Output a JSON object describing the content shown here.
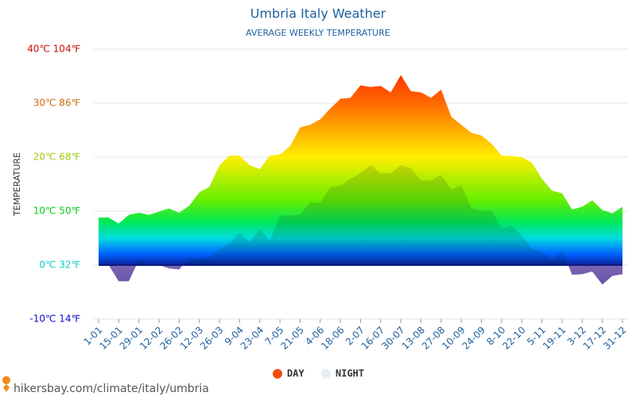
{
  "chart_data": {
    "type": "area",
    "title": "Umbria Italy Weather",
    "subtitle": "AVERAGE WEEKLY TEMPERATURE",
    "y_label": "TEMPERATURE",
    "source": "hikersbay.com/climate/italy/umbria",
    "categories": [
      "1-01",
      null,
      "15-01",
      null,
      "29-01",
      null,
      "12-02",
      null,
      "26-02",
      null,
      "12-03",
      null,
      "26-03",
      null,
      "9-04",
      null,
      "23-04",
      null,
      "7-05",
      null,
      "21-05",
      null,
      "4-06",
      null,
      "18-06",
      null,
      "2-07",
      null,
      "16-07",
      null,
      "30-07",
      null,
      "13-08",
      null,
      "27-08",
      null,
      "10-09",
      null,
      "24-09",
      null,
      "8-10",
      null,
      "22-10",
      null,
      "5-11",
      null,
      "19-11",
      null,
      "3-12",
      null,
      "17-12",
      null,
      "31-12"
    ],
    "series": [
      {
        "name": "DAY",
        "color": "#f04c0c",
        "values": [
          8.8,
          8.8,
          7.7,
          9.3,
          9.7,
          9.3,
          9.9,
          10.5,
          9.7,
          11,
          13.5,
          14.5,
          18.5,
          20.3,
          20.3,
          18.5,
          17.8,
          20.3,
          20.5,
          22,
          25.5,
          26,
          27,
          29,
          30.8,
          31,
          33.3,
          33,
          33.2,
          32,
          35.2,
          32.2,
          32,
          31,
          32.5,
          27.5,
          26,
          24.5,
          24,
          22.5,
          20.3,
          20.2,
          20,
          19,
          16,
          13.8,
          13.3,
          10.3,
          10.8,
          12,
          10.2,
          9.6,
          10.8
        ]
      },
      {
        "name": "NIGHT",
        "color": "#e8edf5",
        "values": [
          0,
          0,
          -3,
          -3,
          1,
          0,
          0,
          -0.6,
          -0.8,
          1.5,
          1,
          1.5,
          3,
          4,
          6,
          4.3,
          6.7,
          4.5,
          9.2,
          9.2,
          9.3,
          11.7,
          11.5,
          14.5,
          14.7,
          16,
          17,
          18.5,
          17,
          17,
          18.5,
          18,
          15.7,
          15.7,
          16.7,
          14,
          14.8,
          10.5,
          10.1,
          10.2,
          6.8,
          7.3,
          5.5,
          3,
          2.5,
          1,
          2.8,
          -1.8,
          -1.7,
          -1.2,
          -3.6,
          -2,
          -1.7
        ]
      }
    ],
    "ylim": [
      -10,
      40
    ],
    "yticks": [
      {
        "value": -10,
        "label": "-10℃ 14℉"
      },
      {
        "value": 0,
        "label": "0℃ 32℉"
      },
      {
        "value": 10,
        "label": "10℃ 50℉"
      },
      {
        "value": 20,
        "label": "20℃ 68℉"
      },
      {
        "value": 30,
        "label": "30℃ 86℉"
      },
      {
        "value": 40,
        "label": "40℃ 104℉"
      }
    ],
    "grid": true
  }
}
